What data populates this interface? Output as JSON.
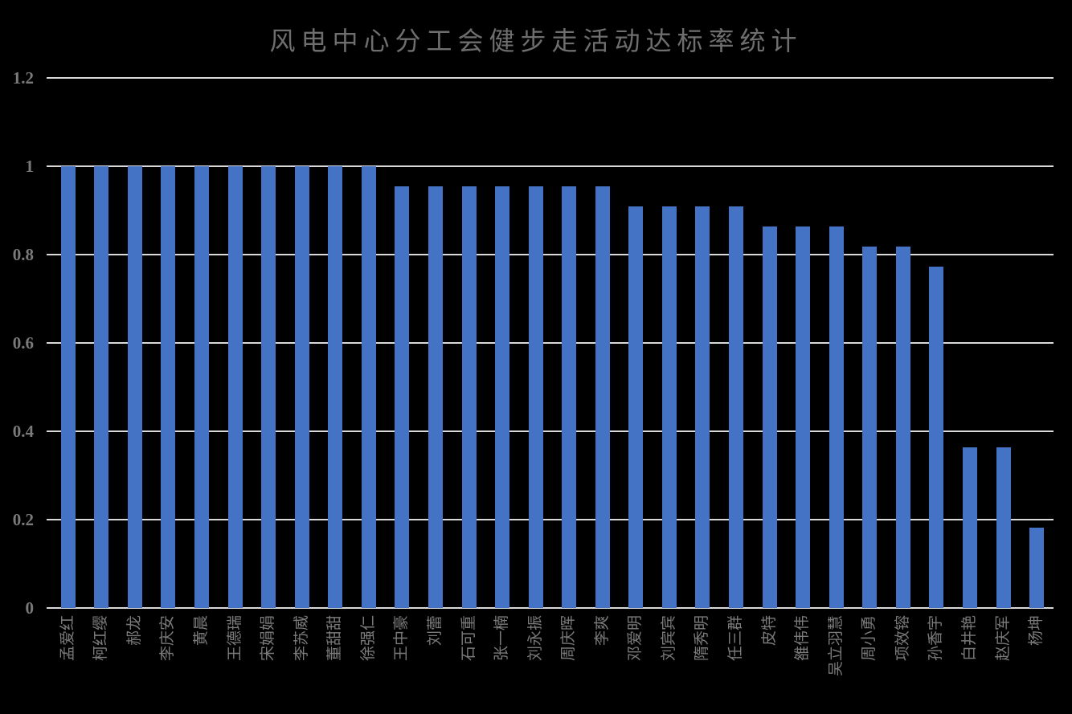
{
  "chart_data": {
    "type": "bar",
    "title": "风电中心分工会健步走活动达标率统计",
    "categories": [
      "孟爱红",
      "柯红缨",
      "郝龙",
      "李庆安",
      "黄晨",
      "王德瑞",
      "宋娟娟",
      "李苏威",
      "董甜甜",
      "徐强仁",
      "王中豪",
      "刘蕾",
      "石可重",
      "张一楠",
      "刘永振",
      "周庆晖",
      "李爽",
      "邓爱明",
      "刘宾宾",
      "隋秀明",
      "任三群",
      "皮特",
      "雒伟伟",
      "吴立羽慧",
      "周小勇",
      "项效镕",
      "孙香宇",
      "白井艳",
      "赵庆军",
      "杨坤"
    ],
    "values": [
      1,
      1,
      1,
      1,
      1,
      1,
      1,
      1,
      1,
      1,
      0.9545,
      0.9545,
      0.9545,
      0.9545,
      0.9545,
      0.9545,
      0.9545,
      0.9091,
      0.9091,
      0.9091,
      0.9091,
      0.8636,
      0.8636,
      0.8636,
      0.8182,
      0.8182,
      0.7727,
      0.3636,
      0.3636,
      0.1818
    ],
    "xlabel": "",
    "ylabel": "",
    "ylim": [
      0,
      1.2
    ],
    "ytick_values": [
      0,
      0.2,
      0.4,
      0.6,
      0.8,
      1,
      1.2
    ],
    "ytick_labels": [
      "0",
      "0.2",
      "0.4",
      "0.6",
      "0.8",
      "1",
      "1.2"
    ],
    "grid": "horizontal",
    "legend": "none",
    "x_label_rotation": "rotate-up-90",
    "colors": {
      "background": "#000000",
      "bar": "#4472C4",
      "gridline": "#D9D9D9",
      "title_text": "#6E6E6E",
      "axis_text": "#7A7A7A"
    }
  }
}
